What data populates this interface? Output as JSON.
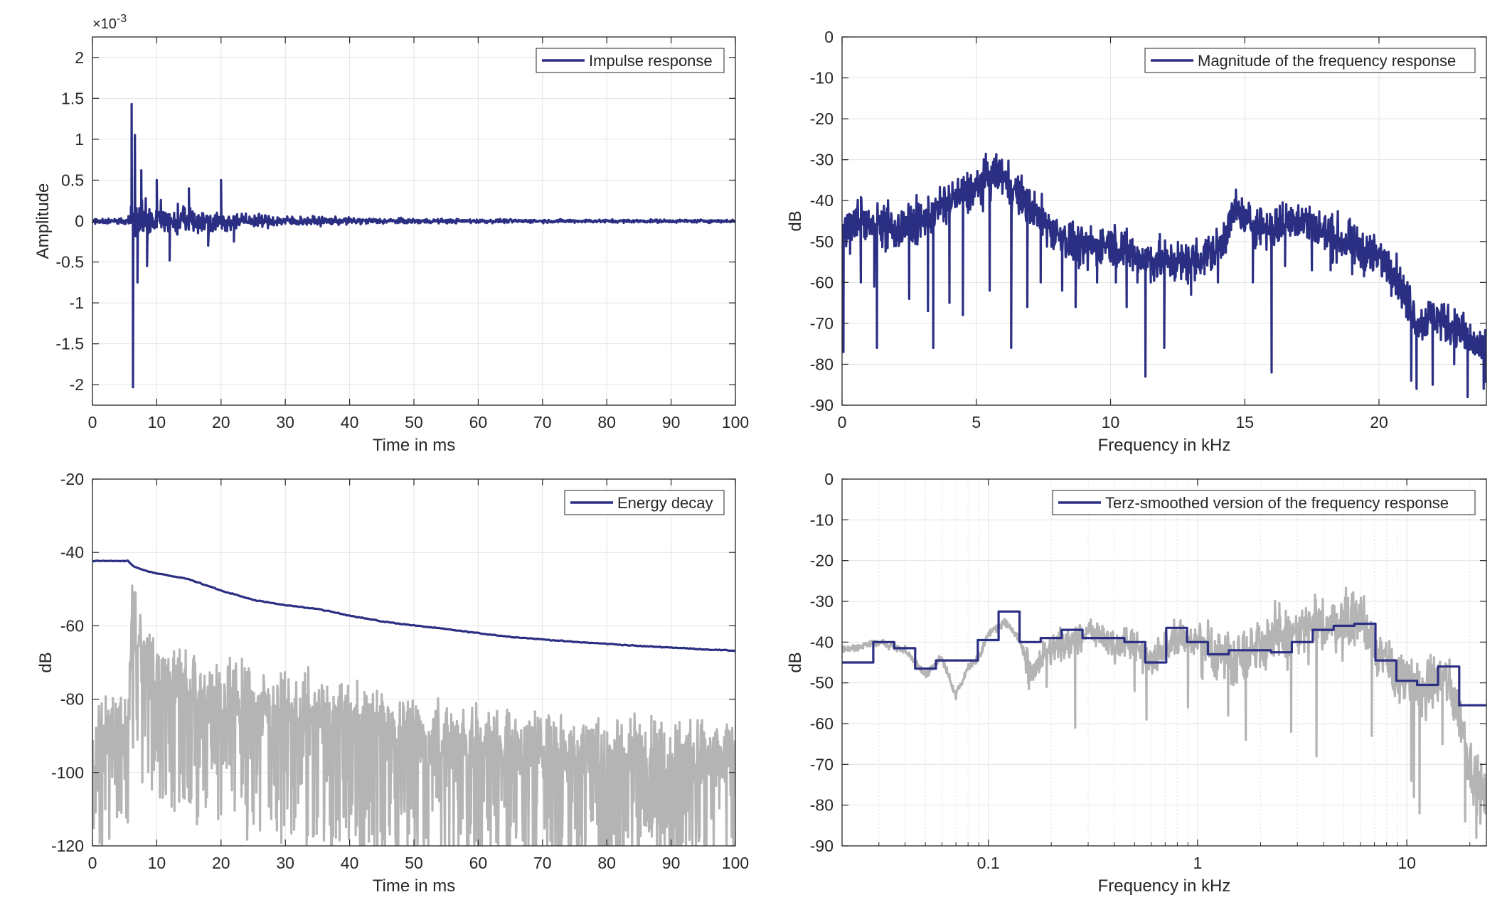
{
  "colors": {
    "primary": "#2b2f83",
    "secondary": "#b4b4b4",
    "grid": "#e3e3e3",
    "axes": "#262626"
  },
  "chart_data": [
    {
      "id": "impulse",
      "type": "line",
      "xlabel": "Time in ms",
      "ylabel": "Amplitude",
      "xlim": [
        0,
        100
      ],
      "ylim": [
        -2.25,
        2.25
      ],
      "xticks": [
        "0",
        "10",
        "20",
        "30",
        "40",
        "50",
        "60",
        "70",
        "80",
        "90",
        "100"
      ],
      "yticks": [
        "-2",
        "-1.5",
        "-1",
        "-0.5",
        "0",
        "0.5",
        "1",
        "1.5",
        "2"
      ],
      "yscale_exponent_label": "×10-3",
      "legend": "Impulse response",
      "legend_position": "top-right",
      "grid": true,
      "series": [
        {
          "name": "Impulse response",
          "color": "primary",
          "x": [
            0,
            2,
            4,
            5.6,
            6.1,
            6.3,
            6.6,
            7.0,
            7.6,
            8.5,
            10,
            12,
            15,
            18,
            20,
            22,
            25,
            28,
            30,
            35,
            40,
            45,
            50,
            60,
            70,
            80,
            90,
            100
          ],
          "y": [
            0,
            0.06,
            -0.08,
            0.06,
            1.43,
            -2.03,
            1.05,
            -0.75,
            0.62,
            -0.55,
            0.5,
            -0.48,
            0.4,
            -0.3,
            0.5,
            -0.25,
            0.2,
            -0.18,
            0.15,
            -0.12,
            0.14,
            -0.06,
            0.05,
            -0.03,
            0.025,
            -0.02,
            0.015,
            0.01
          ]
        }
      ]
    },
    {
      "id": "magnitude",
      "type": "line",
      "xlabel": "Frequency in kHz",
      "ylabel": "dB",
      "xlim": [
        0,
        24
      ],
      "ylim": [
        -90,
        0
      ],
      "xticks": [
        "0",
        "5",
        "10",
        "15",
        "20"
      ],
      "yticks": [
        "0",
        "-10",
        "-20",
        "-30",
        "-40",
        "-50",
        "-60",
        "-70",
        "-80",
        "-90"
      ],
      "legend": "Magnitude of the frequency response",
      "legend_position": "top-right",
      "grid": true,
      "series": [
        {
          "name": "Magnitude of the frequency response",
          "color": "primary",
          "x": [
            0,
            0.5,
            1,
            2,
            3,
            4,
            5,
            5.8,
            6.5,
            7.5,
            8,
            9,
            10,
            11,
            12,
            13,
            14,
            14.7,
            15,
            16,
            17,
            18,
            19,
            20,
            20.5,
            21,
            21.5,
            22,
            23,
            24
          ],
          "y": [
            -48,
            -45,
            -45,
            -47,
            -45,
            -40,
            -37,
            -33,
            -38,
            -45,
            -48,
            -52,
            -50,
            -54,
            -55,
            -55,
            -52,
            -42,
            -45,
            -47,
            -44,
            -48,
            -51,
            -54,
            -56,
            -64,
            -70,
            -68,
            -72,
            -78
          ],
          "dips": [
            [
              0.05,
              -77
            ],
            [
              0.3,
              -53
            ],
            [
              0.7,
              -60
            ],
            [
              1.2,
              -61
            ],
            [
              1.3,
              -76
            ],
            [
              2.5,
              -64
            ],
            [
              3.4,
              -76
            ],
            [
              3.2,
              -67
            ],
            [
              4.0,
              -65
            ],
            [
              4.5,
              -68
            ],
            [
              5.5,
              -62
            ],
            [
              6.3,
              -76
            ],
            [
              6.9,
              -66
            ],
            [
              7.4,
              -60
            ],
            [
              8.2,
              -62
            ],
            [
              8.7,
              -66
            ],
            [
              9.5,
              -60
            ],
            [
              10.2,
              -60
            ],
            [
              10.6,
              -66
            ],
            [
              11.0,
              -60
            ],
            [
              11.3,
              -83
            ],
            [
              11.5,
              -60
            ],
            [
              12.0,
              -76
            ],
            [
              13.0,
              -63
            ],
            [
              13.5,
              -58
            ],
            [
              14.0,
              -60
            ],
            [
              15.3,
              -60
            ],
            [
              16.0,
              -82
            ],
            [
              16.5,
              -56
            ],
            [
              17.5,
              -57
            ],
            [
              18.2,
              -57
            ],
            [
              19.0,
              -58
            ],
            [
              21.2,
              -84
            ],
            [
              21.4,
              -86
            ],
            [
              22.0,
              -85
            ],
            [
              22.8,
              -80
            ],
            [
              23.3,
              -88
            ],
            [
              23.9,
              -86
            ]
          ]
        }
      ]
    },
    {
      "id": "energy",
      "type": "line",
      "xlabel": "Time in ms",
      "ylabel": "dB",
      "xlim": [
        0,
        100
      ],
      "ylim": [
        -120,
        -20
      ],
      "xticks": [
        "0",
        "10",
        "20",
        "30",
        "40",
        "50",
        "60",
        "70",
        "80",
        "90",
        "100"
      ],
      "yticks": [
        "-20",
        "-40",
        "-60",
        "-80",
        "-100",
        "-120"
      ],
      "legend": "Energy decay",
      "legend_position": "top-right",
      "grid": true,
      "series": [
        {
          "name": "Energy decay",
          "color": "primary",
          "x": [
            0,
            5.5,
            6.3,
            7.5,
            10,
            15,
            20,
            25,
            30,
            35,
            40,
            45,
            50,
            55,
            60,
            65,
            70,
            75,
            80,
            85,
            90,
            95,
            100
          ],
          "y": [
            -42.3,
            -42.3,
            -43.7,
            -44.6,
            -45.7,
            -47.3,
            -50.4,
            -52.9,
            -54.4,
            -55.4,
            -57.2,
            -58.8,
            -59.9,
            -60.9,
            -62,
            -63,
            -63.7,
            -64.4,
            -64.9,
            -65.5,
            -65.9,
            -66.4,
            -66.8
          ]
        },
        {
          "color": "secondary",
          "x": [
            0,
            5.5,
            6.2,
            6.6,
            8,
            10,
            12,
            15,
            20,
            25,
            30,
            40,
            50,
            60,
            70,
            80,
            90,
            100
          ],
          "y": [
            -90,
            -88,
            -54,
            -62,
            -68,
            -72,
            -74,
            -77,
            -80,
            -82,
            -84,
            -86,
            -90,
            -92,
            -93,
            -94,
            -95,
            -97
          ],
          "noise_floor": -120
        }
      ]
    },
    {
      "id": "terz",
      "type": "line",
      "xscale": "log",
      "xlabel": "Frequency in kHz",
      "ylabel": "dB",
      "xlim": [
        0.02,
        24
      ],
      "ylim": [
        -90,
        0
      ],
      "xticks": [
        "0.1",
        "1",
        "10"
      ],
      "xtick_values": [
        0.1,
        1,
        10
      ],
      "yticks": [
        "0",
        "-10",
        "-20",
        "-30",
        "-40",
        "-50",
        "-60",
        "-70",
        "-80",
        "-90"
      ],
      "legend": "Terz-smoothed version of the frequency response",
      "legend_position": "top-right",
      "grid": true,
      "series": [
        {
          "name": "Terz-smoothed version of the frequency response",
          "color": "primary",
          "step": true,
          "edges": [
            0.02,
            0.0282,
            0.0355,
            0.0447,
            0.0562,
            0.0708,
            0.0891,
            0.112,
            0.141,
            0.178,
            0.224,
            0.282,
            0.355,
            0.447,
            0.562,
            0.708,
            0.891,
            1.12,
            1.41,
            1.78,
            2.24,
            2.82,
            3.55,
            4.47,
            5.62,
            7.08,
            8.91,
            11.2,
            14.1,
            17.8,
            24
          ],
          "levels": [
            -45,
            -40,
            -41.5,
            -46.5,
            -44.5,
            -44.5,
            -39.5,
            -32.5,
            -40,
            -39,
            -37,
            -39,
            -39,
            -40,
            -45,
            -36.5,
            -40,
            -43,
            -42,
            -42,
            -42.5,
            -40,
            -37,
            -36,
            -35.5,
            -44.5,
            -49.5,
            -50.5,
            -46,
            -55.5
          ]
        },
        {
          "color": "secondary",
          "x": [
            0.02,
            0.03,
            0.04,
            0.05,
            0.06,
            0.07,
            0.08,
            0.09,
            0.1,
            0.12,
            0.14,
            0.16,
            0.2,
            0.25,
            0.3,
            0.4,
            0.5,
            0.6,
            0.8,
            1,
            1.5,
            2,
            3,
            4,
            5,
            6,
            7,
            8,
            10,
            12,
            15,
            18,
            20,
            24
          ],
          "y": [
            -42,
            -40,
            -42,
            -48,
            -44,
            -53,
            -46,
            -44,
            -38,
            -35,
            -39,
            -48,
            -42,
            -40,
            -37,
            -41,
            -40,
            -45,
            -38,
            -41,
            -44,
            -40,
            -38,
            -36,
            -35,
            -34,
            -40,
            -46,
            -50,
            -52,
            -48,
            -58,
            -70,
            -80
          ],
          "dips": [
            [
              0.155,
              -50
            ],
            [
              0.19,
              -51
            ],
            [
              0.26,
              -61
            ],
            [
              0.5,
              -52
            ],
            [
              0.57,
              -59
            ],
            [
              0.9,
              -56
            ],
            [
              1.4,
              -58
            ],
            [
              1.7,
              -64
            ],
            [
              2.8,
              -62
            ],
            [
              3.7,
              -68
            ],
            [
              6.8,
              -63
            ],
            [
              10.5,
              -74
            ],
            [
              10.8,
              -78
            ],
            [
              11.5,
              -82
            ],
            [
              14.8,
              -65
            ],
            [
              19.0,
              -84
            ],
            [
              21.5,
              -88
            ]
          ]
        }
      ]
    }
  ]
}
